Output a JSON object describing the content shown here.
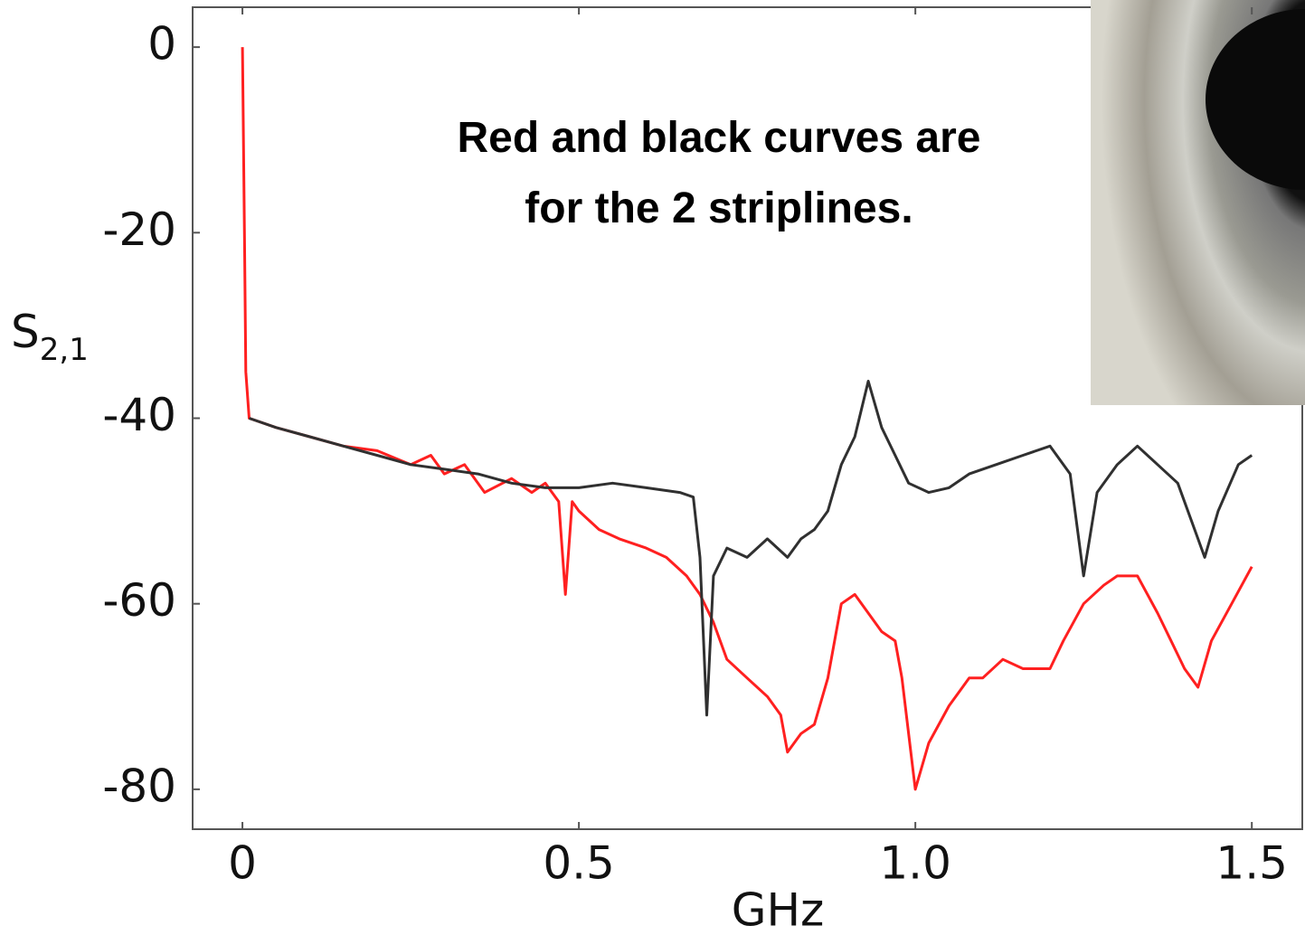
{
  "chart_data": {
    "type": "line",
    "xlabel": "GHz",
    "ylabel": "S",
    "ylabel_subscript": "2,1",
    "annotation": [
      "Red and black curves are",
      "for the 2 striplines."
    ],
    "xlim": [
      -0.074,
      1.575
    ],
    "ylim": [
      -84.3,
      4.3
    ],
    "xticks": [
      0,
      0.5,
      {
        "value": 1,
        "label": "1.0"
      },
      1.5
    ],
    "yticks": [
      0,
      -20,
      -40,
      -60,
      -80
    ],
    "grid": false,
    "series": [
      {
        "color": "#ff2020",
        "x": [
          0,
          0.003,
          0.005,
          0.01,
          0.05,
          0.1,
          0.15,
          0.2,
          0.25,
          0.28,
          0.3,
          0.33,
          0.36,
          0.4,
          0.43,
          0.45,
          0.47,
          0.48,
          0.49,
          0.5,
          0.53,
          0.56,
          0.6,
          0.63,
          0.66,
          0.68,
          0.7,
          0.72,
          0.75,
          0.78,
          0.8,
          0.81,
          0.83,
          0.85,
          0.87,
          0.89,
          0.91,
          0.93,
          0.95,
          0.97,
          0.98,
          1.0,
          1.02,
          1.05,
          1.08,
          1.1,
          1.13,
          1.16,
          1.2,
          1.22,
          1.25,
          1.28,
          1.3,
          1.33,
          1.36,
          1.38,
          1.4,
          1.42,
          1.44,
          1.47,
          1.5
        ],
        "values": [
          0,
          -20,
          -35,
          -40,
          -41,
          -42,
          -43,
          -43.5,
          -45,
          -44,
          -46,
          -45,
          -48,
          -46.5,
          -48,
          -47,
          -49,
          -59,
          -49,
          -50,
          -52,
          -53,
          -54,
          -55,
          -57,
          -59,
          -62,
          -66,
          -68,
          -70,
          -72,
          -76,
          -74,
          -73,
          -68,
          -60,
          -59,
          -61,
          -63,
          -64,
          -68,
          -80,
          -75,
          -71,
          -68,
          -68,
          -66,
          -67,
          -67,
          -64,
          -60,
          -58,
          -57,
          -57,
          -61,
          -64,
          -67,
          -69,
          -64,
          -60,
          -56
        ]
      },
      {
        "color": "#303030",
        "x": [
          0.01,
          0.05,
          0.1,
          0.15,
          0.2,
          0.25,
          0.3,
          0.35,
          0.4,
          0.45,
          0.5,
          0.55,
          0.6,
          0.65,
          0.67,
          0.68,
          0.69,
          0.7,
          0.72,
          0.75,
          0.78,
          0.81,
          0.83,
          0.85,
          0.87,
          0.89,
          0.91,
          0.93,
          0.95,
          0.97,
          0.99,
          1.02,
          1.05,
          1.08,
          1.12,
          1.16,
          1.2,
          1.23,
          1.25,
          1.27,
          1.3,
          1.33,
          1.36,
          1.39,
          1.42,
          1.43,
          1.45,
          1.48,
          1.5
        ],
        "values": [
          -40,
          -41,
          -42,
          -43,
          -44,
          -45,
          -45.5,
          -46,
          -47,
          -47.5,
          -47.5,
          -47,
          -47.5,
          -48,
          -48.5,
          -55,
          -72,
          -57,
          -54,
          -55,
          -53,
          -55,
          -53,
          -52,
          -50,
          -45,
          -42,
          -36,
          -41,
          -44,
          -47,
          -48,
          -47.5,
          -46,
          -45,
          -44,
          -43,
          -46,
          -57,
          -48,
          -45,
          -43,
          -45,
          -47,
          -53,
          -55,
          -50,
          -45,
          -44
        ]
      }
    ]
  }
}
